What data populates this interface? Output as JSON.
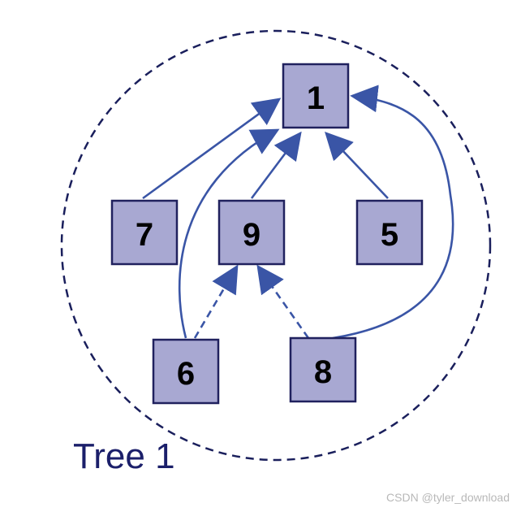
{
  "diagram": {
    "caption": "Tree 1",
    "nodes": {
      "n1": "1",
      "n7": "7",
      "n9": "9",
      "n5": "5",
      "n6": "6",
      "n8": "8"
    },
    "edges": [
      {
        "from": "7",
        "to": "1",
        "style": "solid"
      },
      {
        "from": "9",
        "to": "1",
        "style": "solid"
      },
      {
        "from": "5",
        "to": "1",
        "style": "solid"
      },
      {
        "from": "6",
        "to": "1",
        "style": "solid"
      },
      {
        "from": "8",
        "to": "1",
        "style": "solid"
      },
      {
        "from": "6",
        "to": "9",
        "style": "dashed"
      },
      {
        "from": "8",
        "to": "9",
        "style": "dashed"
      }
    ],
    "colors": {
      "node_fill": "#a8a8d2",
      "node_border": "#20215e",
      "edge": "#3a55a6",
      "boundary": "#1a1f5c",
      "caption": "#1b1f6a"
    }
  },
  "watermark": "CSDN @tyler_download"
}
